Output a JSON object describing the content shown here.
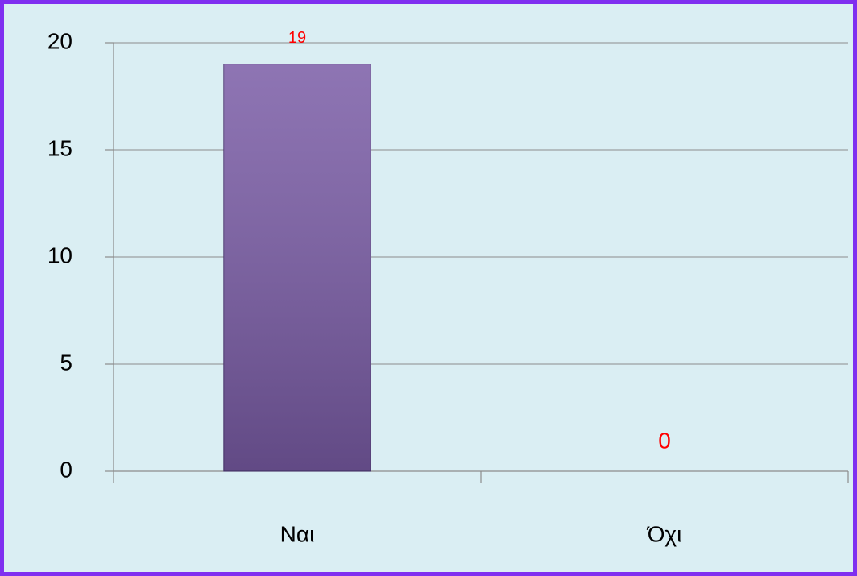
{
  "chart_data": {
    "type": "bar",
    "categories": [
      "Ναι",
      "Όχι"
    ],
    "values": [
      19,
      0
    ],
    "color": "#7a5ca6",
    "value_label_color": "#ff0000",
    "ylim": [
      0,
      20
    ],
    "yticks": [
      0,
      5,
      10,
      15,
      20
    ],
    "grid": true
  }
}
